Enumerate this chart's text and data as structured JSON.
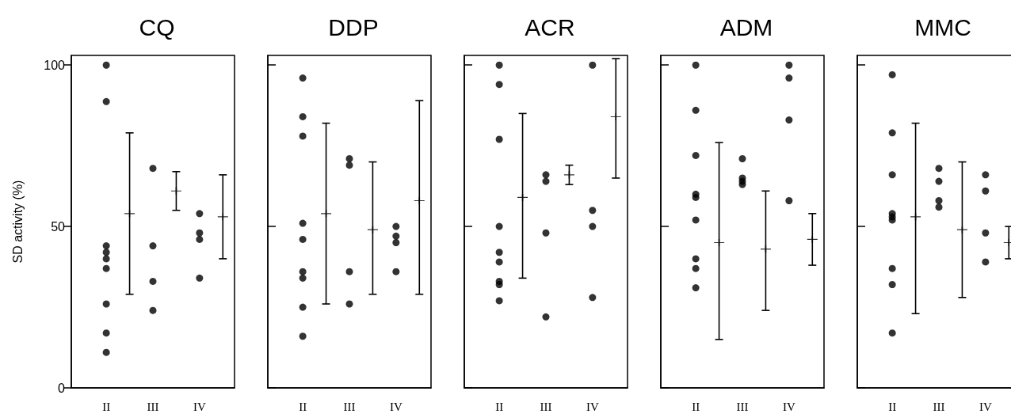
{
  "chart_data": [
    {
      "type": "scatter",
      "title": "CQ",
      "ylabel": "SD activity (%)",
      "categories": [
        null,
        "II",
        null,
        "III",
        null,
        "IV",
        null
      ],
      "ylim": [
        0,
        103
      ],
      "yticks": [
        0,
        50,
        100
      ],
      "marker": "circle",
      "series": [
        {
          "color": "#000000",
          "x": [
            "II",
            "II",
            "II",
            "II",
            "II",
            "II",
            "II",
            "II",
            "II",
            "III",
            "III",
            "III",
            "III",
            "IV",
            "IV",
            "IV",
            "IV"
          ],
          "values": [
            100,
            88.7,
            44,
            42,
            40,
            37,
            26,
            17,
            11,
            68,
            44,
            33,
            24,
            54,
            48,
            46,
            34
          ]
        },
        {
          "color": "#000000",
          "marker": "cross",
          "values": [
            null,
            null,
            54,
            null,
            61,
            null,
            53
          ],
          "errors": [
            null,
            null,
            [
              29,
              79
            ],
            null,
            [
              55,
              67
            ],
            null,
            [
              40,
              66
            ]
          ]
        }
      ]
    },
    {
      "type": "scatter",
      "title": "DDP",
      "categories": [
        null,
        "II",
        null,
        "III",
        null,
        "IV",
        null
      ],
      "ylim": [
        0,
        103
      ],
      "yticks": [
        0,
        50,
        100
      ],
      "tick_labels": "x",
      "marker": "circle",
      "series": [
        {
          "color": "#000000",
          "x": [
            "II",
            "II",
            "II",
            "II",
            "II",
            "II",
            "II",
            "II",
            "II",
            "III",
            "III",
            "III",
            "III",
            "IV",
            "IV",
            "IV",
            "IV"
          ],
          "values": [
            96,
            84,
            78,
            51,
            46,
            36,
            34,
            25,
            16,
            71,
            69,
            36,
            26,
            50,
            47,
            45,
            36
          ]
        },
        {
          "color": "#000000",
          "marker": "cross",
          "values": [
            null,
            null,
            54,
            null,
            49,
            null,
            58
          ],
          "errors": [
            null,
            null,
            [
              26,
              82
            ],
            null,
            [
              29,
              70
            ],
            null,
            [
              29,
              89
            ]
          ]
        }
      ]
    },
    {
      "type": "scatter",
      "title": "ACR",
      "categories": [
        null,
        "II",
        null,
        "III",
        null,
        "IV",
        null
      ],
      "ylim": [
        0,
        103
      ],
      "yticks": [
        0,
        50,
        100
      ],
      "tick_labels": "x",
      "marker": "circle",
      "series": [
        {
          "color": "#000000",
          "x": [
            "II",
            "II",
            "II",
            "II",
            "II",
            "II",
            "II",
            "II",
            "II",
            "III",
            "III",
            "III",
            "III",
            "IV",
            "IV",
            "IV",
            "IV"
          ],
          "values": [
            100,
            94,
            77,
            50,
            42,
            39,
            33,
            32,
            27,
            66,
            64,
            48,
            22,
            100,
            55,
            50,
            28
          ]
        },
        {
          "color": "#000000",
          "marker": "cross",
          "values": [
            null,
            null,
            59,
            null,
            66,
            null,
            84
          ],
          "errors": [
            null,
            null,
            [
              34,
              85
            ],
            null,
            [
              63,
              69
            ],
            null,
            [
              65,
              102
            ]
          ]
        }
      ]
    },
    {
      "type": "scatter",
      "title": "ADM",
      "categories": [
        null,
        "II",
        null,
        "III",
        null,
        "IV",
        null
      ],
      "ylim": [
        0,
        103
      ],
      "yticks": [
        0,
        50,
        100
      ],
      "tick_labels": "x",
      "marker": "circle",
      "series": [
        {
          "color": "#000000",
          "x": [
            "II",
            "II",
            "II",
            "II",
            "II",
            "II",
            "II",
            "II",
            "II",
            "III",
            "III",
            "III",
            "III",
            "IV",
            "IV",
            "IV",
            "IV"
          ],
          "values": [
            100,
            86,
            72,
            60,
            59,
            52,
            40,
            37,
            31,
            71,
            65,
            64,
            63,
            100,
            96,
            83,
            58
          ]
        },
        {
          "color": "#000000",
          "marker": "cross",
          "values": [
            null,
            null,
            45,
            null,
            43,
            null,
            46
          ],
          "errors": [
            null,
            null,
            [
              15,
              76
            ],
            null,
            [
              24,
              61
            ],
            null,
            [
              38,
              54
            ]
          ]
        }
      ]
    },
    {
      "type": "scatter",
      "title": "MMC",
      "categories": [
        null,
        "II",
        null,
        "III",
        null,
        "IV",
        null
      ],
      "ylim": [
        0,
        103
      ],
      "yticks": [
        0,
        50,
        100
      ],
      "tick_labels": "x",
      "marker": "circle",
      "series": [
        {
          "color": "#000000",
          "x": [
            "II",
            "II",
            "II",
            "II",
            "II",
            "II",
            "II",
            "II",
            "II",
            "III",
            "III",
            "III",
            "III",
            "IV",
            "IV",
            "IV",
            "IV"
          ],
          "values": [
            97,
            79,
            66,
            54,
            53,
            52,
            37,
            32,
            17,
            68,
            64,
            58,
            56,
            66,
            61,
            48,
            39
          ]
        },
        {
          "color": "#000000",
          "marker": "cross",
          "values": [
            null,
            null,
            53,
            null,
            49,
            null,
            45
          ],
          "errors": [
            null,
            null,
            [
              23,
              82
            ],
            null,
            [
              28,
              70
            ],
            null,
            [
              40,
              50
            ]
          ]
        }
      ]
    }
  ]
}
